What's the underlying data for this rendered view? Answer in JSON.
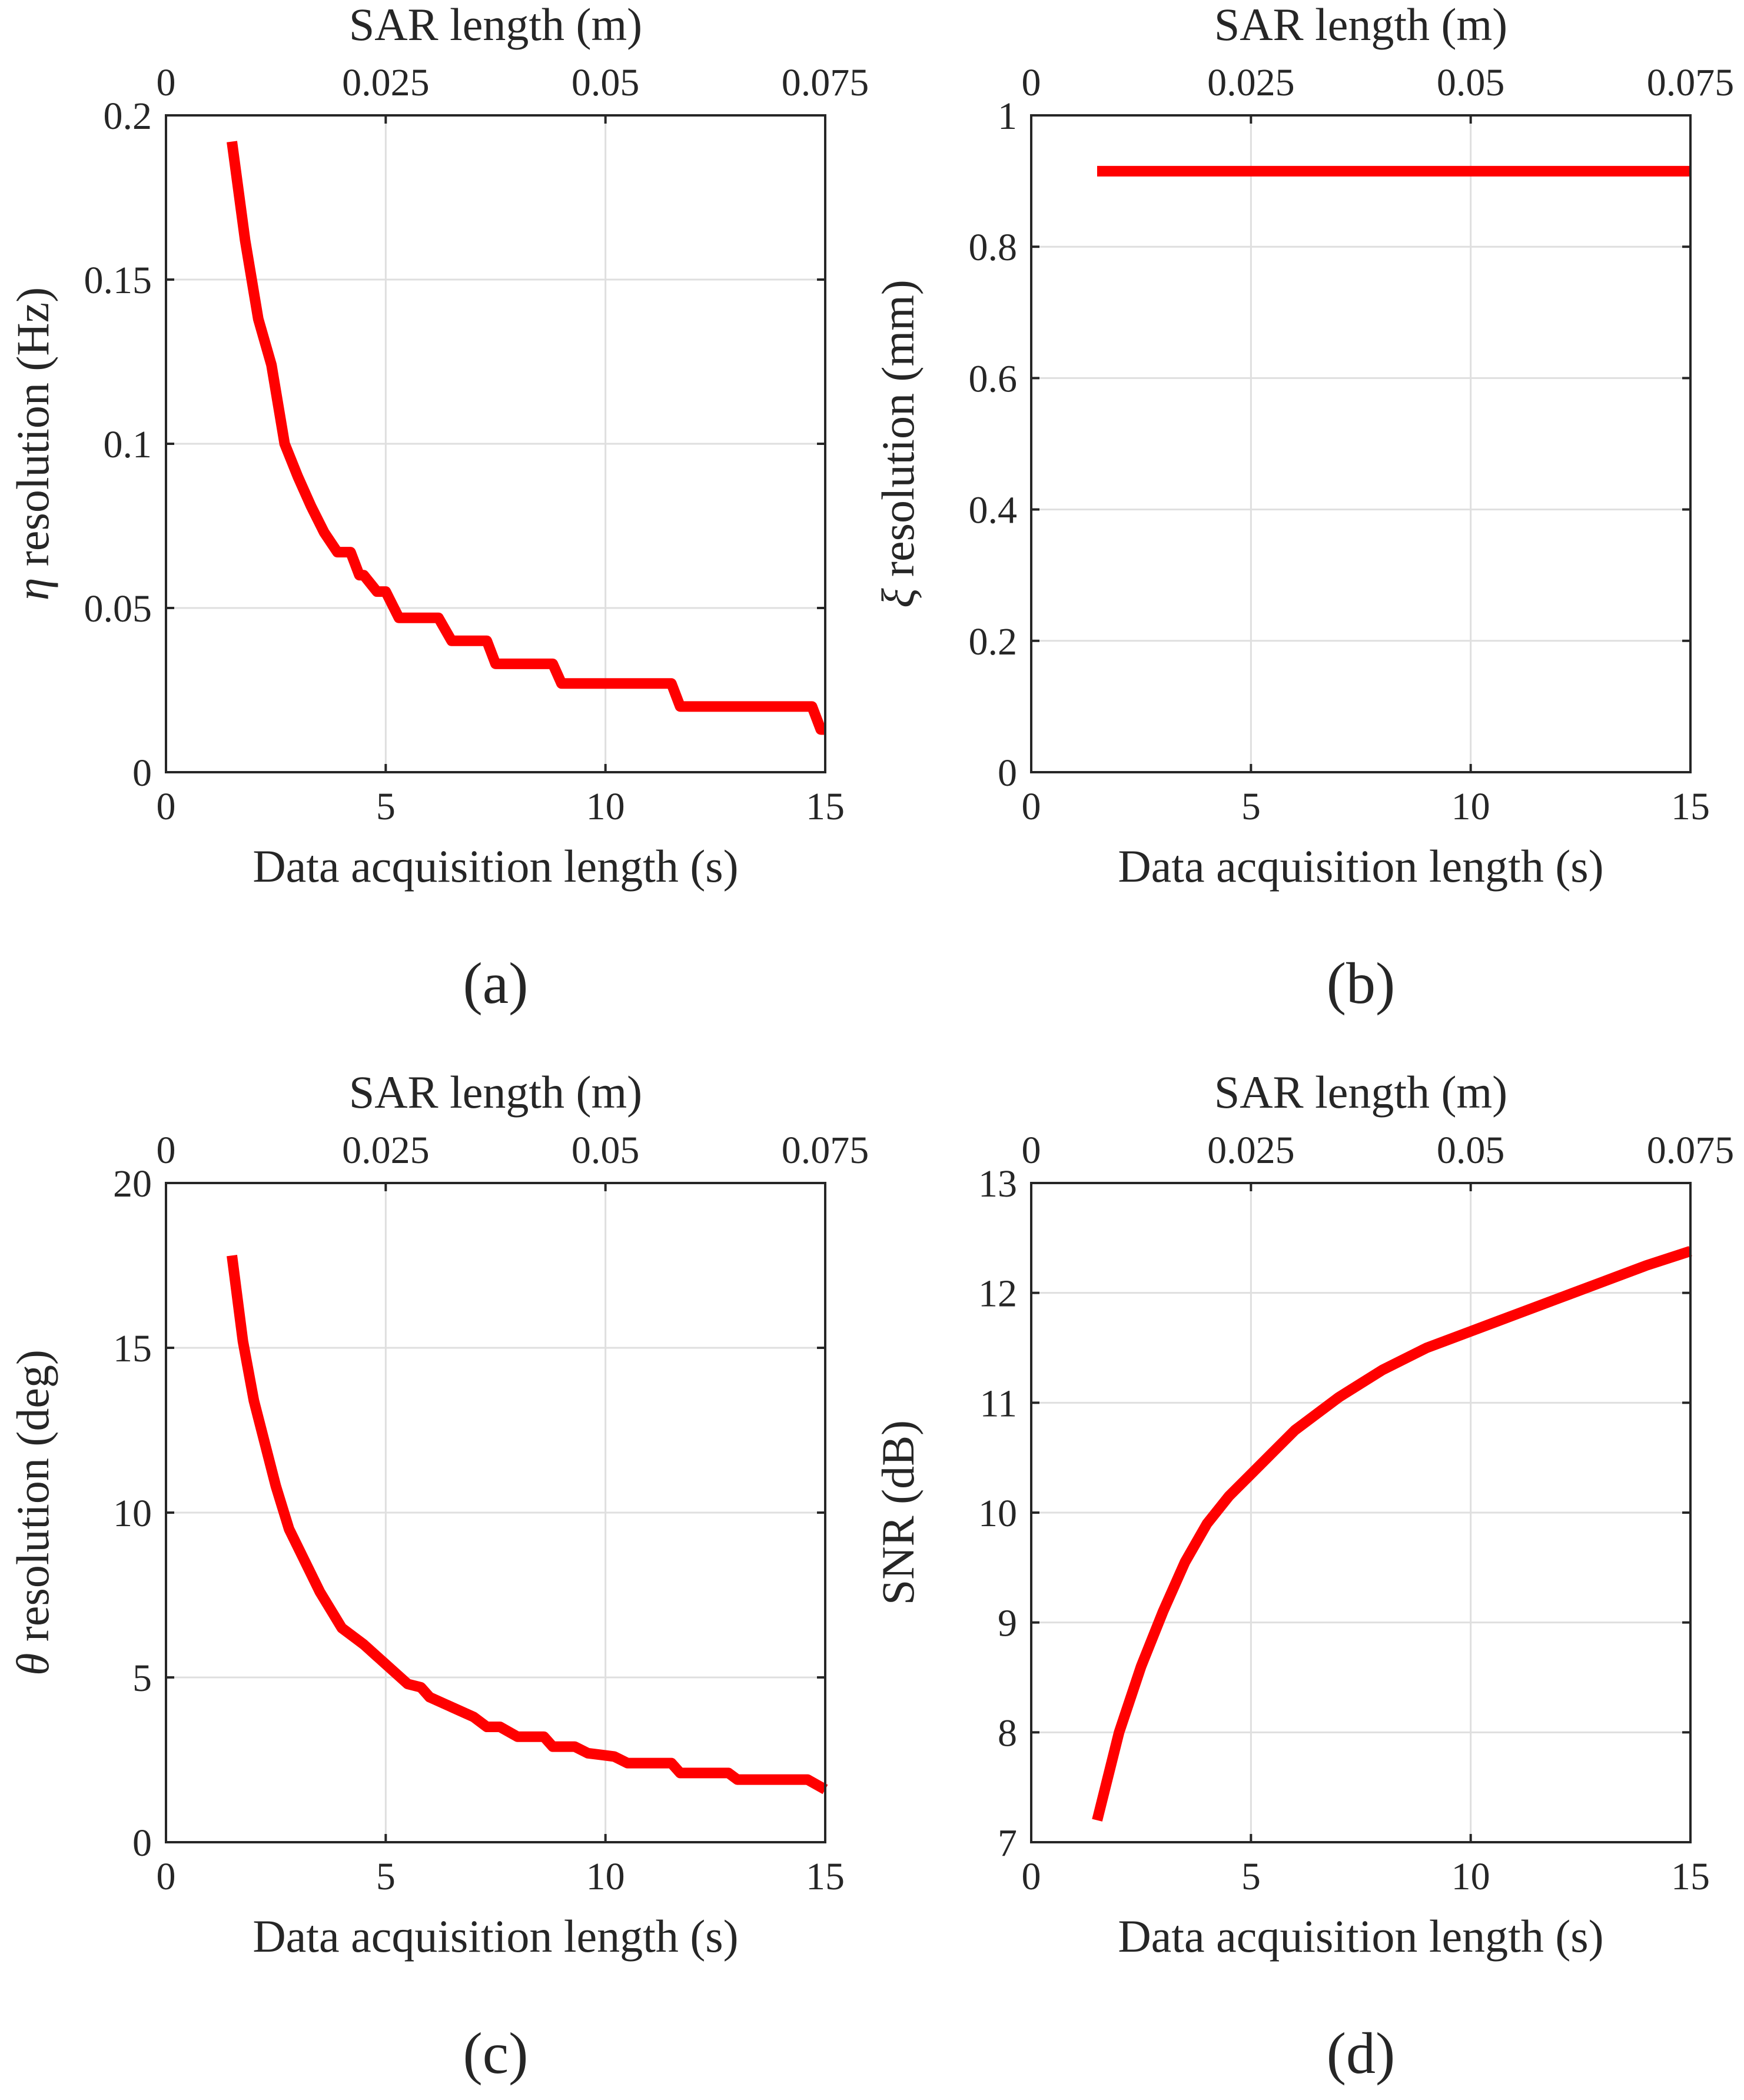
{
  "chart_data": [
    {
      "panel": "a",
      "type": "line",
      "caption": "(a)",
      "xlabel": "Data acquisition length (s)",
      "x2label": "SAR length (m)",
      "ylabel_symbol": "η",
      "ylabel": " resolution (Hz)",
      "xlim": [
        0,
        15
      ],
      "ylim": [
        0,
        0.2
      ],
      "x2lim": [
        0,
        0.075
      ],
      "xticks": [
        "0",
        "5",
        "10",
        "15"
      ],
      "yticks": [
        "0",
        "0.05",
        "0.1",
        "0.15",
        "0.2"
      ],
      "x2ticks": [
        "0",
        "0.025",
        "0.05",
        "0.075"
      ],
      "line_color": "#ff0000",
      "series": [
        {
          "name": "eta resolution",
          "x": [
            1.5,
            1.8,
            2.1,
            2.4,
            2.7,
            3.0,
            3.3,
            3.6,
            3.9,
            4.2,
            4.4,
            4.5,
            4.8,
            5.0,
            5.3,
            5.5,
            6.2,
            6.5,
            7.3,
            7.5,
            8.8,
            9.0,
            11.5,
            11.7,
            14.7,
            14.9,
            15.0
          ],
          "y": [
            0.192,
            0.162,
            0.138,
            0.124,
            0.1,
            0.09,
            0.081,
            0.073,
            0.067,
            0.067,
            0.06,
            0.06,
            0.055,
            0.055,
            0.047,
            0.047,
            0.047,
            0.04,
            0.04,
            0.033,
            0.033,
            0.027,
            0.027,
            0.02,
            0.02,
            0.013,
            0.013
          ]
        }
      ]
    },
    {
      "panel": "b",
      "type": "line",
      "caption": "(b)",
      "xlabel": "Data acquisition length (s)",
      "x2label": "SAR length (m)",
      "ylabel_symbol": "ξ",
      "ylabel": " resolution (mm)",
      "xlim": [
        0,
        15
      ],
      "ylim": [
        0,
        1
      ],
      "x2lim": [
        0,
        0.075
      ],
      "xticks": [
        "0",
        "5",
        "10",
        "15"
      ],
      "yticks": [
        "0",
        "0.2",
        "0.4",
        "0.6",
        "0.8",
        "1"
      ],
      "x2ticks": [
        "0",
        "0.025",
        "0.05",
        "0.075"
      ],
      "line_color": "#ff0000",
      "series": [
        {
          "name": "xi resolution",
          "x": [
            1.5,
            15.0
          ],
          "y": [
            0.915,
            0.915
          ]
        }
      ]
    },
    {
      "panel": "c",
      "type": "line",
      "caption": "(c)",
      "xlabel": "Data acquisition length (s)",
      "x2label": "SAR length (m)",
      "ylabel_symbol": "θ",
      "ylabel": " resolution (deg)",
      "xlim": [
        0,
        15
      ],
      "ylim": [
        0,
        20
      ],
      "x2lim": [
        0,
        0.075
      ],
      "xticks": [
        "0",
        "5",
        "10",
        "15"
      ],
      "yticks": [
        "0",
        "5",
        "10",
        "15",
        "20"
      ],
      "x2ticks": [
        "0",
        "0.025",
        "0.05",
        "0.075"
      ],
      "line_color": "#ff0000",
      "series": [
        {
          "name": "theta resolution",
          "x": [
            1.5,
            1.75,
            2.0,
            2.5,
            2.8,
            3.5,
            4.0,
            4.5,
            5.0,
            5.5,
            5.8,
            6.0,
            7.0,
            7.3,
            7.6,
            8.0,
            8.6,
            8.8,
            9.3,
            9.6,
            10.2,
            10.5,
            11.5,
            11.7,
            12.8,
            13.0,
            14.6,
            15.0
          ],
          "y": [
            17.8,
            15.2,
            13.4,
            10.8,
            9.5,
            7.6,
            6.5,
            6.0,
            5.4,
            4.8,
            4.7,
            4.4,
            3.8,
            3.5,
            3.5,
            3.2,
            3.2,
            2.9,
            2.9,
            2.7,
            2.6,
            2.4,
            2.4,
            2.1,
            2.1,
            1.9,
            1.9,
            1.6
          ]
        }
      ]
    },
    {
      "panel": "d",
      "type": "line",
      "caption": "(d)",
      "xlabel": "Data acquisition length (s)",
      "x2label": "SAR length (m)",
      "ylabel_symbol": "",
      "ylabel": "SNR (dB)",
      "xlim": [
        0,
        15
      ],
      "ylim": [
        7,
        13
      ],
      "x2lim": [
        0,
        0.075
      ],
      "xticks": [
        "0",
        "5",
        "10",
        "15"
      ],
      "yticks": [
        "7",
        "8",
        "9",
        "10",
        "11",
        "12",
        "13"
      ],
      "x2ticks": [
        "0",
        "0.025",
        "0.05",
        "0.075"
      ],
      "line_color": "#ff0000",
      "series": [
        {
          "name": "SNR",
          "x": [
            1.5,
            2.0,
            2.5,
            3.0,
            3.5,
            4.0,
            4.5,
            5.0,
            5.5,
            6.0,
            7.0,
            8.0,
            9.0,
            10.0,
            11.0,
            12.0,
            13.0,
            14.0,
            15.0
          ],
          "y": [
            7.2,
            8.0,
            8.6,
            9.1,
            9.55,
            9.9,
            10.15,
            10.35,
            10.55,
            10.75,
            11.05,
            11.3,
            11.5,
            11.65,
            11.8,
            11.95,
            12.1,
            12.25,
            12.38
          ]
        }
      ]
    }
  ]
}
